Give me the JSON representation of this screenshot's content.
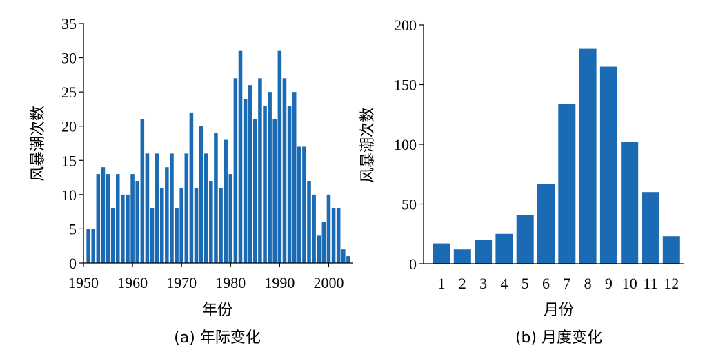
{
  "chart_data": [
    {
      "type": "bar",
      "caption": "(a) 年际变化",
      "xlabel": "年份",
      "ylabel": "风暴潮次数",
      "ylim": [
        0,
        35
      ],
      "yticks": [
        0,
        5,
        10,
        15,
        20,
        25,
        30,
        35
      ],
      "xlim": [
        1950,
        2005
      ],
      "xticks": [
        1950,
        1960,
        1970,
        1980,
        1990,
        2000
      ],
      "color": "#1a6bb3",
      "x": [
        1951,
        1952,
        1953,
        1954,
        1955,
        1956,
        1957,
        1958,
        1959,
        1960,
        1961,
        1962,
        1963,
        1964,
        1965,
        1966,
        1967,
        1968,
        1969,
        1970,
        1971,
        1972,
        1973,
        1974,
        1975,
        1976,
        1977,
        1978,
        1979,
        1980,
        1981,
        1982,
        1983,
        1984,
        1985,
        1986,
        1987,
        1988,
        1989,
        1990,
        1991,
        1992,
        1993,
        1994,
        1995,
        1996,
        1997,
        1998,
        1999,
        2000,
        2001,
        2002,
        2003,
        2004
      ],
      "values": [
        5,
        5,
        13,
        14,
        13,
        8,
        13,
        10,
        10,
        13,
        12,
        21,
        16,
        8,
        16,
        11,
        14,
        16,
        8,
        11,
        16,
        22,
        11,
        20,
        16,
        12,
        19,
        11,
        18,
        13,
        27,
        31,
        24,
        26,
        21,
        27,
        23,
        25,
        21,
        31,
        27,
        23,
        25,
        17,
        17,
        12,
        10,
        4,
        6,
        10,
        8,
        8,
        2,
        1
      ]
    },
    {
      "type": "bar",
      "caption": "(b) 月度变化",
      "xlabel": "月份",
      "ylabel": "风暴潮次数",
      "ylim": [
        0,
        200
      ],
      "yticks": [
        0,
        50,
        100,
        150,
        200
      ],
      "categories": [
        "1",
        "2",
        "3",
        "4",
        "5",
        "6",
        "7",
        "8",
        "9",
        "10",
        "11",
        "12"
      ],
      "color": "#1a6bb3",
      "values": [
        17,
        12,
        20,
        25,
        41,
        67,
        134,
        180,
        165,
        102,
        60,
        23
      ]
    }
  ]
}
